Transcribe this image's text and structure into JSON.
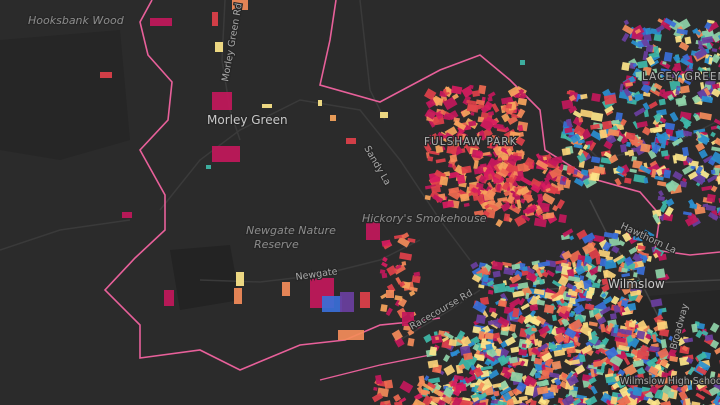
{
  "map": {
    "labels": [
      {
        "text": "Hooksbank Wood"
      },
      {
        "text": "Morley Green Rd"
      },
      {
        "text": "Morley Green"
      },
      {
        "text": "Sandy La"
      },
      {
        "text": "FULSHAW PARK"
      },
      {
        "text": "Hickory's Smokehouse"
      },
      {
        "text": "Newgate Nature"
      },
      {
        "text": "Reserve"
      },
      {
        "text": "Newgate"
      },
      {
        "text": "Racecourse Rd"
      },
      {
        "text": "Wilmslow"
      },
      {
        "text": "LACEY GREEN"
      },
      {
        "text": "Hawthorn La"
      },
      {
        "text": "Broadway"
      },
      {
        "text": "Wilmslow High School"
      }
    ]
  }
}
